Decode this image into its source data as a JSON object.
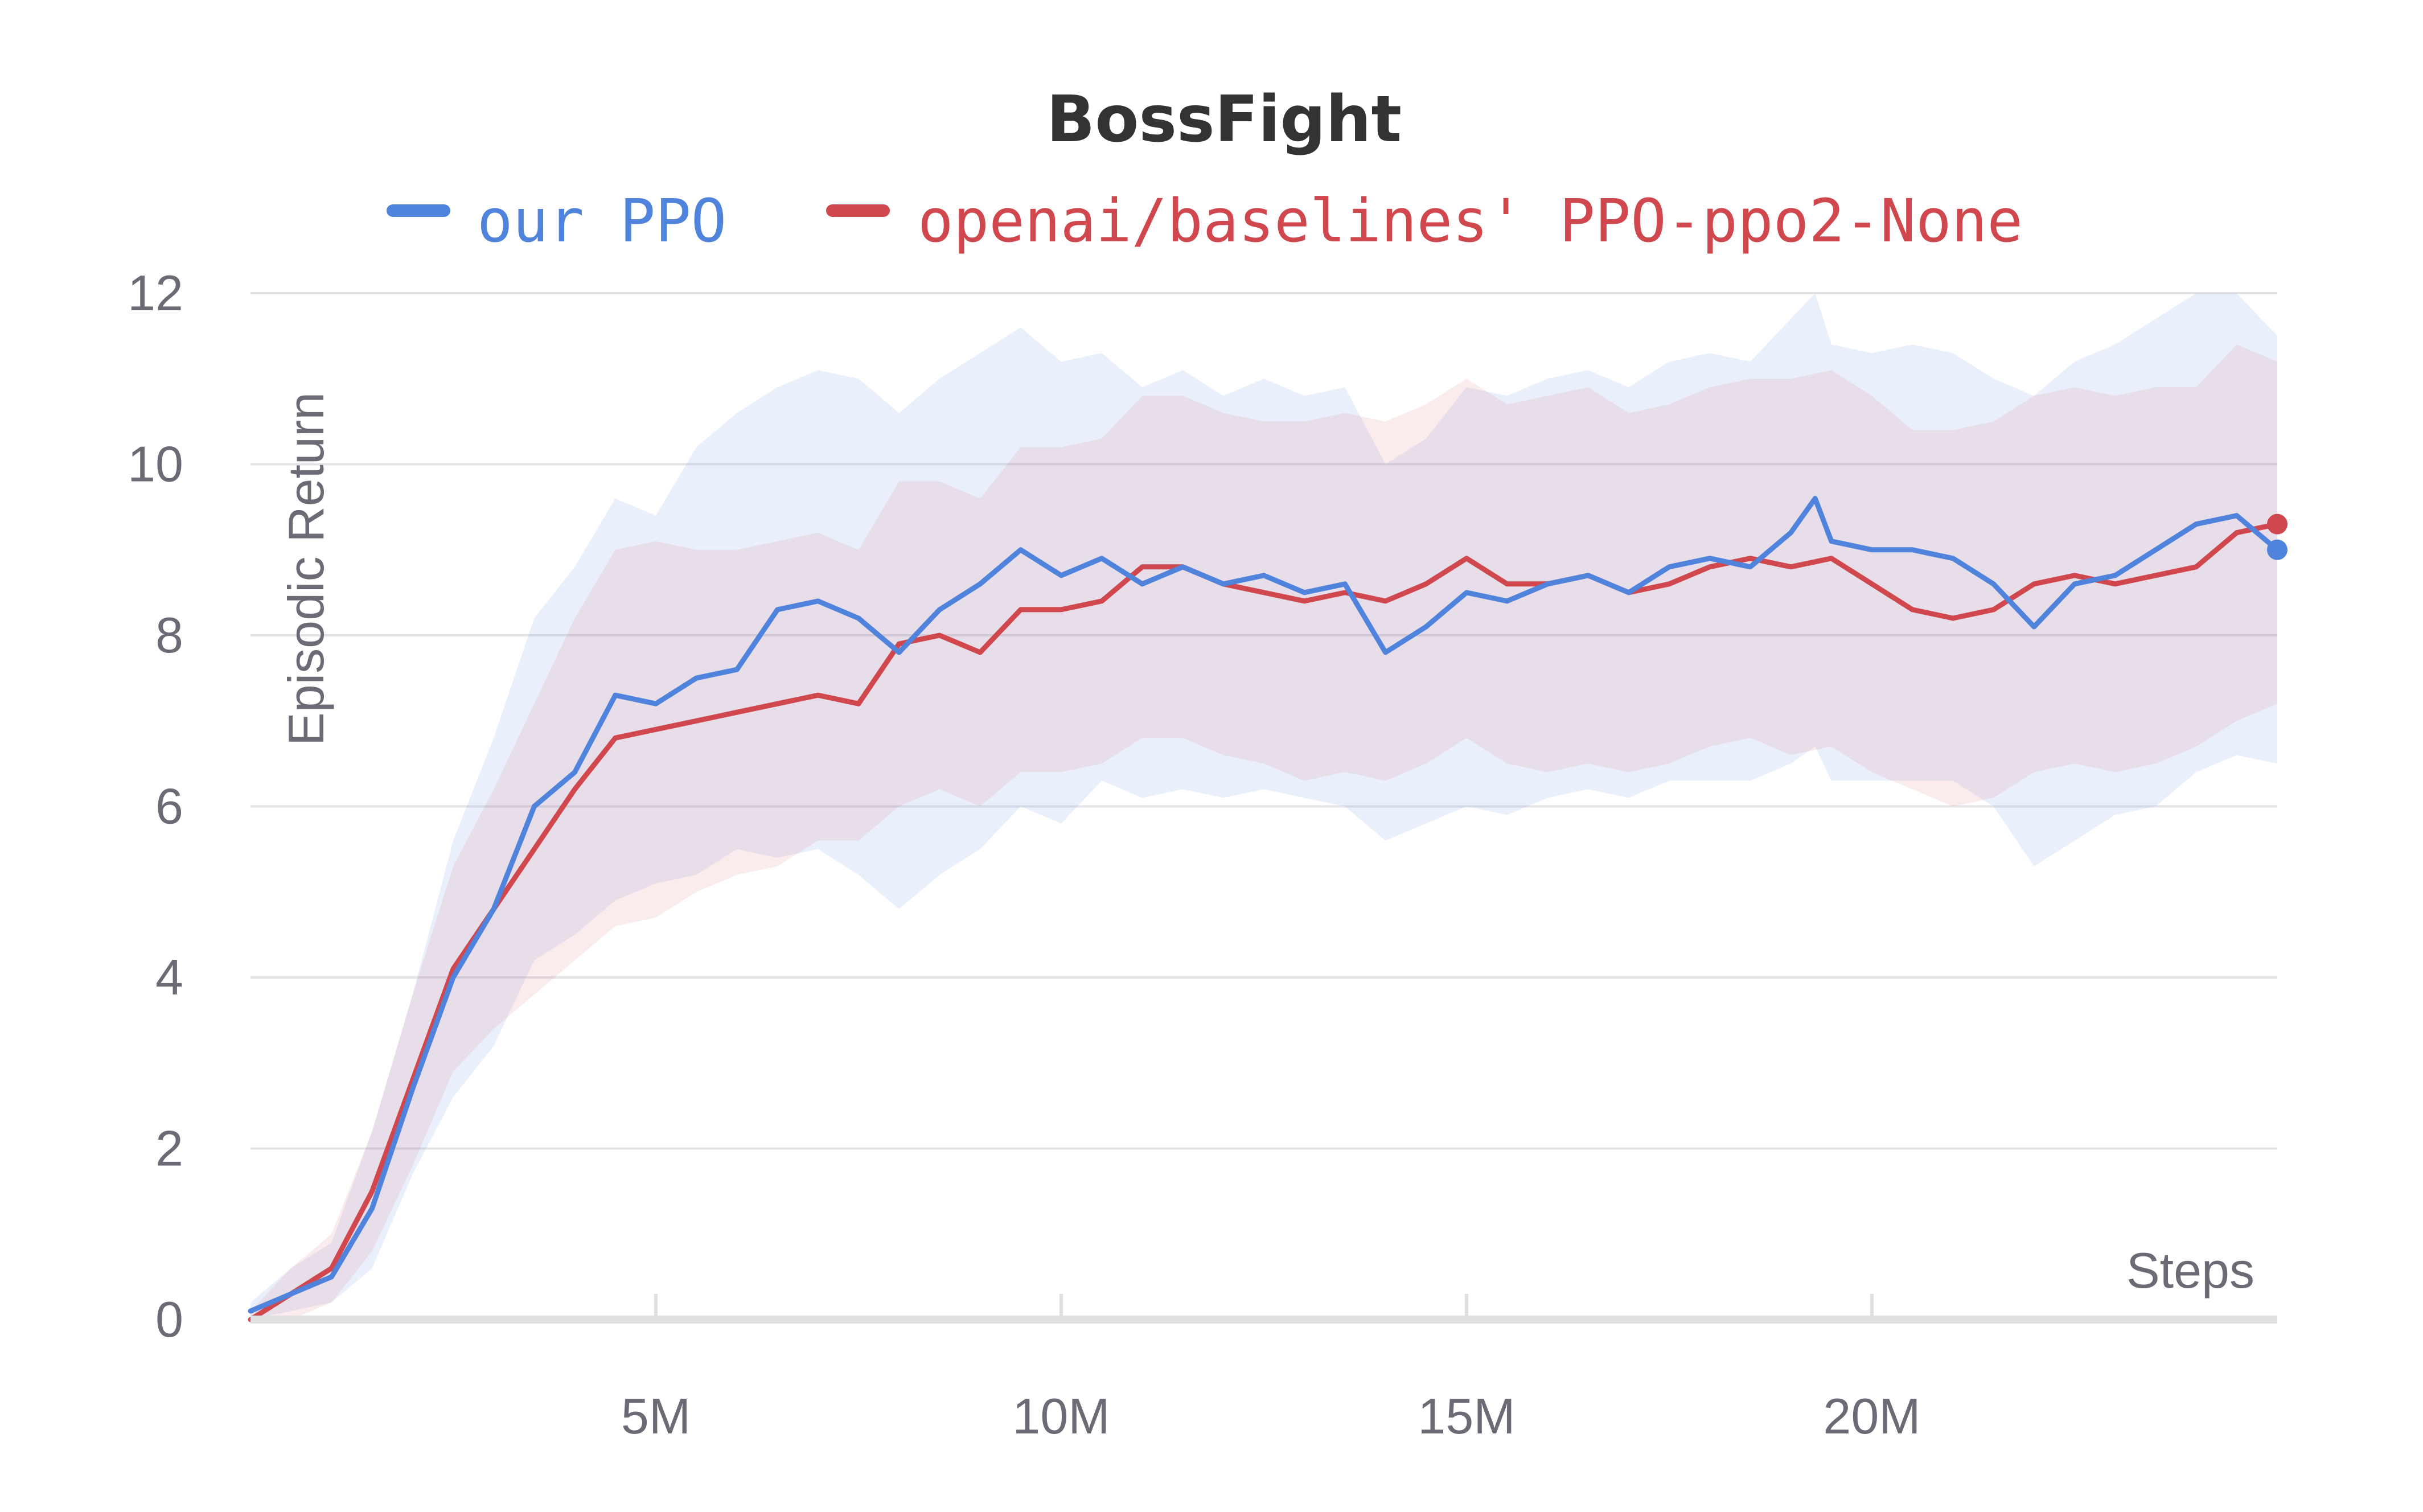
{
  "chart_data": {
    "type": "line",
    "title": "BossFight",
    "xlabel": "Steps",
    "ylabel": "Episodic Return",
    "xlim": [
      0,
      25000000
    ],
    "ylim": [
      0,
      12
    ],
    "x_ticks": [
      {
        "value": 5000000,
        "label": "5M"
      },
      {
        "value": 10000000,
        "label": "10M"
      },
      {
        "value": 15000000,
        "label": "15M"
      },
      {
        "value": 20000000,
        "label": "20M"
      }
    ],
    "y_ticks": [
      {
        "value": 0,
        "label": "0"
      },
      {
        "value": 2,
        "label": "2"
      },
      {
        "value": 4,
        "label": "4"
      },
      {
        "value": 6,
        "label": "6"
      },
      {
        "value": 8,
        "label": "8"
      },
      {
        "value": 10,
        "label": "10"
      },
      {
        "value": 12,
        "label": "12"
      }
    ],
    "grid": true,
    "legend_position": "top",
    "series": [
      {
        "name": "our PPO",
        "color": "#5084dc",
        "x": [
          0,
          500000,
          1000000,
          1500000,
          2000000,
          2500000,
          3000000,
          3500000,
          4000000,
          4500000,
          5000000,
          5500000,
          6000000,
          6500000,
          7000000,
          7500000,
          8000000,
          8500000,
          9000000,
          9500000,
          10000000,
          10500000,
          11000000,
          11500000,
          12000000,
          12500000,
          13000000,
          13500000,
          14000000,
          14500000,
          15000000,
          15500000,
          16000000,
          16500000,
          17000000,
          17500000,
          18000000,
          18500000,
          19000000,
          19300000,
          19500000,
          20000000,
          20500000,
          21000000,
          21500000,
          22000000,
          22500000,
          23000000,
          23500000,
          24000000,
          24500000,
          25000000
        ],
        "y": [
          0.1,
          0.3,
          0.5,
          1.3,
          2.7,
          4.0,
          4.8,
          6.0,
          6.4,
          7.3,
          7.2,
          7.5,
          7.6,
          8.3,
          8.4,
          8.2,
          7.8,
          8.3,
          8.6,
          9.0,
          8.7,
          8.9,
          8.6,
          8.8,
          8.6,
          8.7,
          8.5,
          8.6,
          7.8,
          8.1,
          8.5,
          8.4,
          8.6,
          8.7,
          8.5,
          8.8,
          8.9,
          8.8,
          9.2,
          9.6,
          9.1,
          9.0,
          9.0,
          8.9,
          8.6,
          8.1,
          8.6,
          8.7,
          9.0,
          9.3,
          9.4,
          9.0
        ],
        "band_lower": [
          0.0,
          0.1,
          0.2,
          0.6,
          1.7,
          2.6,
          3.2,
          4.2,
          4.5,
          4.9,
          5.1,
          5.2,
          5.5,
          5.4,
          5.5,
          5.2,
          4.8,
          5.2,
          5.5,
          6.0,
          5.8,
          6.3,
          6.1,
          6.2,
          6.1,
          6.2,
          6.1,
          6.0,
          5.6,
          5.8,
          6.0,
          5.9,
          6.1,
          6.2,
          6.1,
          6.3,
          6.3,
          6.3,
          6.5,
          6.7,
          6.3,
          6.3,
          6.3,
          6.3,
          6.0,
          5.3,
          5.6,
          5.9,
          6.0,
          6.4,
          6.6,
          6.5
        ],
        "band_upper": [
          0.2,
          0.6,
          0.9,
          2.2,
          3.8,
          5.6,
          6.8,
          8.2,
          8.8,
          9.6,
          9.4,
          10.2,
          10.6,
          10.9,
          11.1,
          11.0,
          10.6,
          11.0,
          11.3,
          11.6,
          11.2,
          11.3,
          10.9,
          11.1,
          10.8,
          11.0,
          10.8,
          10.9,
          10.0,
          10.3,
          10.9,
          10.8,
          11.0,
          11.1,
          10.9,
          11.2,
          11.3,
          11.2,
          11.7,
          12.0,
          11.4,
          11.3,
          11.4,
          11.3,
          11.0,
          10.8,
          11.2,
          11.4,
          11.7,
          12.0,
          12.0,
          11.5
        ]
      },
      {
        "name": "openai/baselines' PPO-ppo2-None",
        "color": "#d0484e",
        "x": [
          0,
          500000,
          1000000,
          1500000,
          2000000,
          2500000,
          3000000,
          3500000,
          4000000,
          4500000,
          5000000,
          5500000,
          6000000,
          6500000,
          7000000,
          7500000,
          8000000,
          8500000,
          9000000,
          9500000,
          10000000,
          10500000,
          11000000,
          11500000,
          12000000,
          12500000,
          13000000,
          13500000,
          14000000,
          14500000,
          15000000,
          15500000,
          16000000,
          16500000,
          17000000,
          17500000,
          18000000,
          18500000,
          19000000,
          19500000,
          20000000,
          20500000,
          21000000,
          21500000,
          22000000,
          22500000,
          23000000,
          23500000,
          24000000,
          24500000,
          25000000
        ],
        "y": [
          0.0,
          0.3,
          0.6,
          1.5,
          2.8,
          4.1,
          4.8,
          5.5,
          6.2,
          6.8,
          6.9,
          7.0,
          7.1,
          7.2,
          7.3,
          7.2,
          7.9,
          8.0,
          7.8,
          8.3,
          8.3,
          8.4,
          8.8,
          8.8,
          8.6,
          8.5,
          8.4,
          8.5,
          8.4,
          8.6,
          8.9,
          8.6,
          8.6,
          8.7,
          8.5,
          8.6,
          8.8,
          8.9,
          8.8,
          8.9,
          8.6,
          8.3,
          8.2,
          8.3,
          8.6,
          8.7,
          8.6,
          8.7,
          8.8,
          9.2,
          9.3
        ],
        "band_lower": [
          0.0,
          0.0,
          0.2,
          0.8,
          1.8,
          2.9,
          3.4,
          3.8,
          4.2,
          4.6,
          4.7,
          5.0,
          5.2,
          5.3,
          5.6,
          5.6,
          6.0,
          6.2,
          6.0,
          6.4,
          6.4,
          6.5,
          6.8,
          6.8,
          6.6,
          6.5,
          6.3,
          6.4,
          6.3,
          6.5,
          6.8,
          6.5,
          6.4,
          6.5,
          6.4,
          6.5,
          6.7,
          6.8,
          6.6,
          6.7,
          6.4,
          6.2,
          6.0,
          6.1,
          6.4,
          6.5,
          6.4,
          6.5,
          6.7,
          7.0,
          7.2
        ],
        "band_upper": [
          0.1,
          0.6,
          1.0,
          2.2,
          3.8,
          5.3,
          6.2,
          7.2,
          8.2,
          9.0,
          9.1,
          9.0,
          9.0,
          9.1,
          9.2,
          9.0,
          9.8,
          9.8,
          9.6,
          10.2,
          10.2,
          10.3,
          10.8,
          10.8,
          10.6,
          10.5,
          10.5,
          10.6,
          10.5,
          10.7,
          11.0,
          10.7,
          10.8,
          10.9,
          10.6,
          10.7,
          10.9,
          11.0,
          11.0,
          11.1,
          10.8,
          10.4,
          10.4,
          10.5,
          10.8,
          10.9,
          10.8,
          10.9,
          10.9,
          11.4,
          11.2
        ]
      }
    ]
  }
}
